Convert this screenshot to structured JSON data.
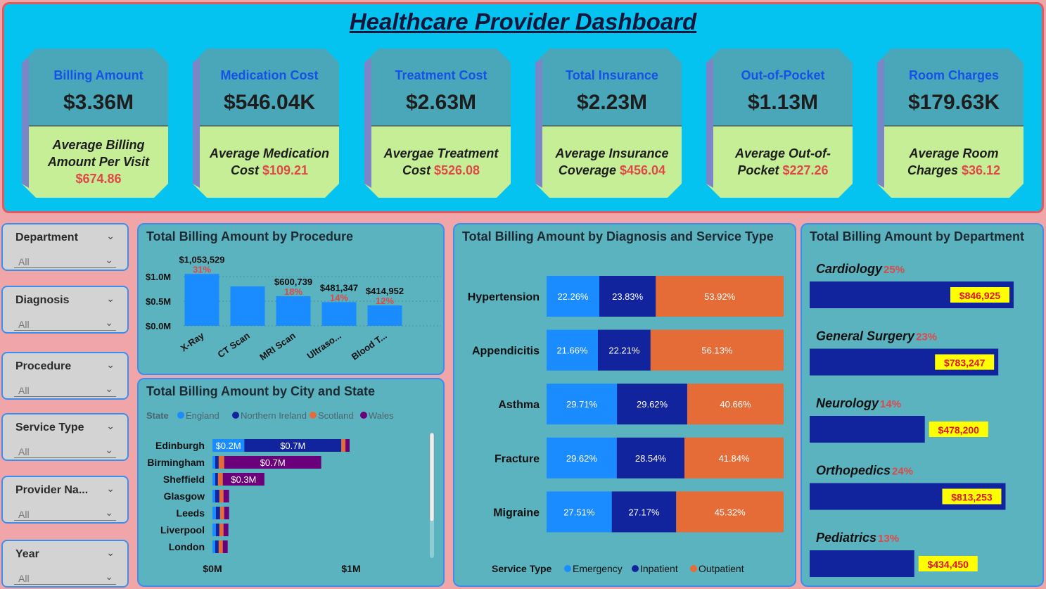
{
  "header": {
    "title": "Healthcare Provider Dashboard"
  },
  "kpis": [
    {
      "label": "Billing Amount",
      "value": "$3.36M",
      "avg_text": "Average Billing Amount Per Visit",
      "avg_value": "$674.86"
    },
    {
      "label": "Medication Cost",
      "value": "$546.04K",
      "avg_text": "Average Medication Cost",
      "avg_value": "$109.21"
    },
    {
      "label": "Treatment Cost",
      "value": "$2.63M",
      "avg_text": "Avergae Treatment Cost",
      "avg_value": "$526.08"
    },
    {
      "label": "Total Insurance",
      "value": "$2.23M",
      "avg_text": "Average Insurance Coverage",
      "avg_value": "$456.04"
    },
    {
      "label": "Out-of-Pocket",
      "value": "$1.13M",
      "avg_text": "Average Out-of-Pocket",
      "avg_value": "$227.26"
    },
    {
      "label": "Room Charges",
      "value": "$179.63K",
      "avg_text": "Average Room Charges",
      "avg_value": "$36.12"
    }
  ],
  "slicers": [
    {
      "title": "Department",
      "value": "All"
    },
    {
      "title": "Diagnosis",
      "value": "All"
    },
    {
      "title": "Procedure",
      "value": "All"
    },
    {
      "title": "Service Type",
      "value": "All"
    },
    {
      "title": "Provider Na...",
      "value": "All"
    },
    {
      "title": "Year",
      "value": "All"
    }
  ],
  "colors": {
    "kpi_top": "#4aa7b9",
    "kpi_bottom": "#c6ee96",
    "kpi_side": "#7a86c8",
    "bar_blue": "#1a8cff",
    "navy": "#12239e",
    "orange": "#e66c37",
    "purple": "#6b007b",
    "pct_red": "#e04848",
    "label_yellow": "#ffff00"
  },
  "chart_data": [
    {
      "type": "bar",
      "title": "Total Billing Amount by Procedure",
      "categories": [
        "X-Ray",
        "CT Scan",
        "MRI Scan",
        "Ultraso...",
        "Blood T..."
      ],
      "values": [
        1053529,
        800000,
        600739,
        481347,
        414952
      ],
      "data_labels": [
        "$1,053,529",
        "",
        "$600,739",
        "$481,347",
        "$414,952"
      ],
      "pct_labels": [
        "31%",
        "",
        "18%",
        "14%",
        "12%"
      ],
      "yticks": [
        "$1.0M",
        "$0.5M",
        "$0.0M"
      ],
      "ylim": [
        0,
        1000000
      ]
    },
    {
      "type": "bar",
      "title": "Total Billing Amount by City and State",
      "legend_title": "State",
      "legend": [
        "England",
        "Northern Ireland",
        "Scotland",
        "Wales"
      ],
      "categories": [
        "Edinburgh",
        "Birmingham",
        "Sheffield",
        "Glasgow",
        "Leeds",
        "Liverpool",
        "London"
      ],
      "series": [
        {
          "name": "England",
          "values": [
            230000,
            20000,
            20000,
            20000,
            25000,
            25000,
            20000
          ]
        },
        {
          "name": "Northern Ireland",
          "values": [
            700000,
            25000,
            20000,
            30000,
            30000,
            25000,
            25000
          ]
        },
        {
          "name": "Scotland",
          "values": [
            30000,
            40000,
            35000,
            30000,
            30000,
            30000,
            30000
          ]
        },
        {
          "name": "Wales",
          "values": [
            30000,
            700000,
            300000,
            40000,
            35000,
            35000,
            35000
          ]
        }
      ],
      "bar_labels": [
        [
          "$0.2M",
          "$0.7M",
          "",
          ""
        ],
        [
          "",
          "",
          "",
          "$0.7M"
        ],
        [
          "",
          "",
          "",
          "$0.3M"
        ],
        [
          "",
          "",
          "",
          ""
        ],
        [
          "",
          "",
          "",
          ""
        ],
        [
          "",
          "",
          "",
          ""
        ],
        [
          "",
          "",
          "",
          ""
        ]
      ],
      "xticks": [
        "$0M",
        "$1M"
      ],
      "xlim": [
        0,
        1000000
      ]
    },
    {
      "type": "bar",
      "title": "Total Billing Amount by Diagnosis and Service Type",
      "stacked_percent": true,
      "categories": [
        "Hypertension",
        "Appendicitis",
        "Asthma",
        "Fracture",
        "Migraine"
      ],
      "series": [
        {
          "name": "Emergency",
          "values": [
            22.26,
            21.66,
            29.71,
            29.62,
            27.51
          ],
          "labels": [
            "22.26%",
            "21.66%",
            "29.71%",
            "29.62%",
            "27.51%"
          ]
        },
        {
          "name": "Inpatient",
          "values": [
            23.83,
            22.21,
            29.62,
            28.54,
            27.17
          ],
          "labels": [
            "23.83%",
            "22.21%",
            "29.62%",
            "28.54%",
            "27.17%"
          ]
        },
        {
          "name": "Outpatient",
          "values": [
            53.92,
            56.13,
            40.66,
            41.84,
            45.32
          ],
          "labels": [
            "53.92%",
            "56.13%",
            "40.66%",
            "41.84%",
            "45.32%"
          ]
        }
      ],
      "legend_title": "Service Type",
      "legend": [
        "Emergency",
        "Inpatient",
        "Outpatient"
      ]
    },
    {
      "type": "bar",
      "title": "Total Billing Amount by Department",
      "categories": [
        "Cardiology",
        "General Surgery",
        "Neurology",
        "Orthopedics",
        "Pediatrics"
      ],
      "values": [
        846925,
        783247,
        478200,
        813253,
        434450
      ],
      "value_labels": [
        "$846,925",
        "$783,247",
        "$478,200",
        "$813,253",
        "$434,450"
      ],
      "pct_labels": [
        "25%",
        "23%",
        "14%",
        "24%",
        "13%"
      ],
      "xlim": [
        0,
        846925
      ]
    }
  ]
}
